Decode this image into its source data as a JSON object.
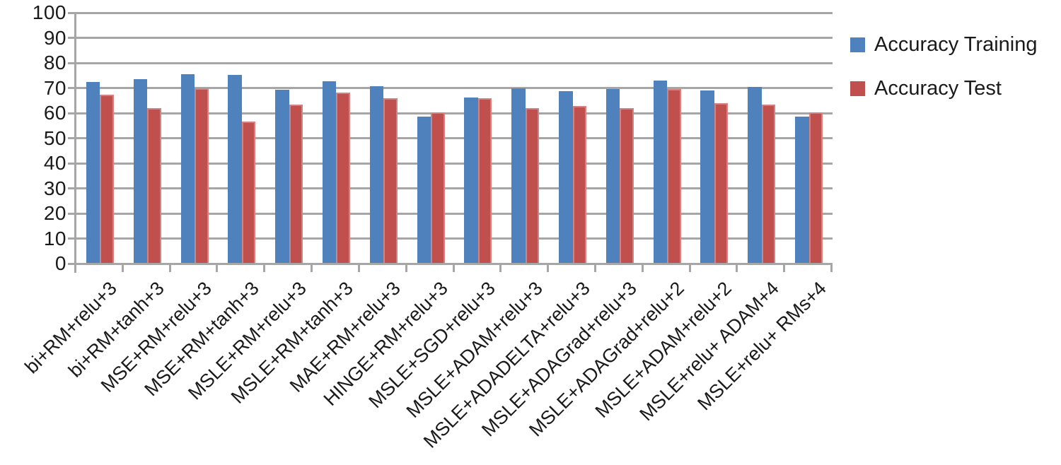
{
  "chart_data": {
    "type": "bar",
    "title": "",
    "xlabel": "",
    "ylabel": "",
    "categories": [
      "bi+RM+relu+3",
      "bi+RM+tanh+3",
      "MSE+RM+relu+3",
      "MSE+RM+tanh+3",
      "MSLE+RM+relu+3",
      "MSLE+RM+tanh+3",
      "MAE+RM+relu+3",
      "HINGE+RM+relu+3",
      "MSLE+SGD+relu+3",
      "MSLE+ADAM+relu+3",
      "MSLE+ADADELTA+relu+3",
      "MSLE+ADAGrad+relu+3",
      "MSLE+ADAGrad+relu+2",
      "MSLE+ADAM+relu+2",
      "MSLE+relu+ ADAM+4",
      "MSLE+relu+ RMs+4"
    ],
    "series": [
      {
        "name": "Accuracy Training",
        "color": "#4F81BD",
        "values": [
          72.4,
          73.5,
          75.5,
          75.1,
          69.2,
          72.6,
          70.7,
          58.7,
          66.1,
          69.8,
          68.8,
          69.6,
          72.9,
          69.0,
          70.5,
          58.6
        ]
      },
      {
        "name": "Accuracy Test",
        "color": "#C0504D",
        "values": [
          67.2,
          62.0,
          70.0,
          56.7,
          63.3,
          68.2,
          66.0,
          60.2,
          65.9,
          62.0,
          62.9,
          61.9,
          69.5,
          64.0,
          63.3,
          60.3
        ]
      }
    ],
    "ylim": [
      0,
      100
    ],
    "yticks": [
      0,
      10,
      20,
      30,
      40,
      50,
      60,
      70,
      80,
      90,
      100
    ],
    "grid": true,
    "gridline_color": "#A6A6A6",
    "text_color": "#1A1A1A",
    "legend_position": "right",
    "x_label_rotation_deg": 45
  }
}
